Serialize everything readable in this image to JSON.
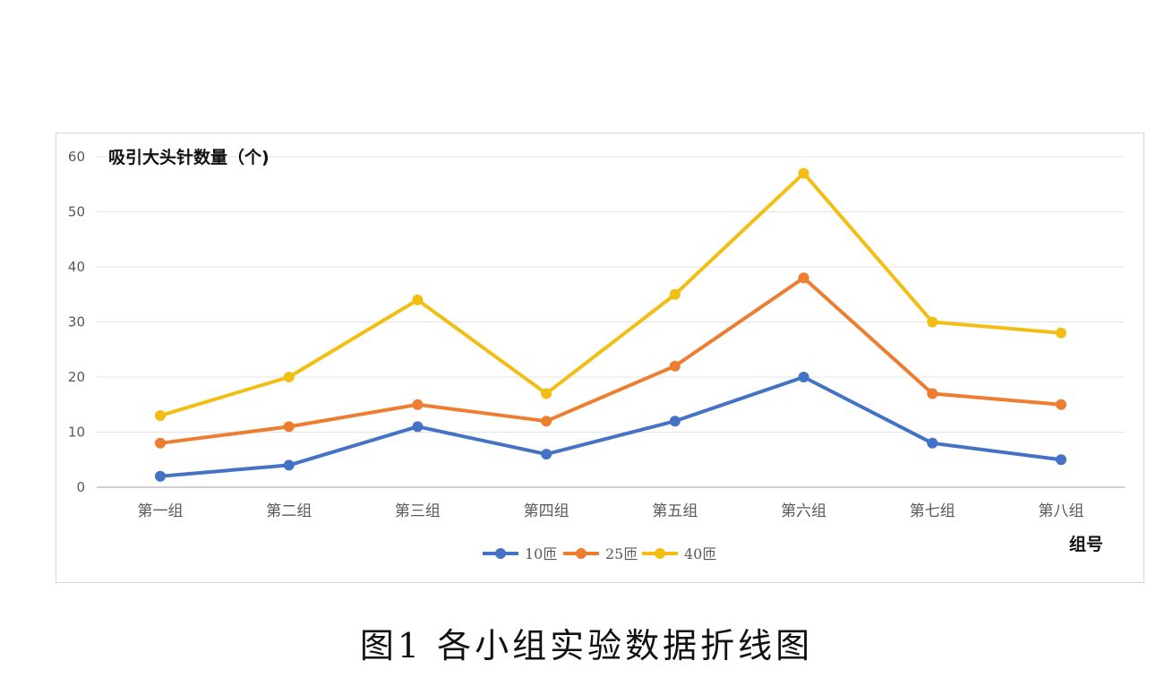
{
  "chart_data": {
    "type": "line",
    "title": "",
    "ylabel": "吸引大头针数量（个)",
    "xlabel": "组号",
    "categories": [
      "第一组",
      "第二组",
      "第三组",
      "第四组",
      "第五组",
      "第六组",
      "第七组",
      "第八组"
    ],
    "yticks": [
      "0",
      "10",
      "20",
      "30",
      "40",
      "50",
      "60"
    ],
    "ylim": [
      0,
      60
    ],
    "grid": true,
    "legend_position": "bottom",
    "series": [
      {
        "name": "10匝",
        "color": "#4472C4",
        "values": [
          2,
          4,
          11,
          6,
          12,
          20,
          8,
          5
        ]
      },
      {
        "name": "25匝",
        "color": "#ED7D31",
        "values": [
          8,
          11,
          15,
          12,
          22,
          38,
          17,
          15
        ]
      },
      {
        "name": "40匝",
        "color": "#F2BE14",
        "values": [
          13,
          20,
          34,
          17,
          35,
          57,
          30,
          28
        ]
      }
    ]
  },
  "caption": "图1   各小组实验数据折线图"
}
